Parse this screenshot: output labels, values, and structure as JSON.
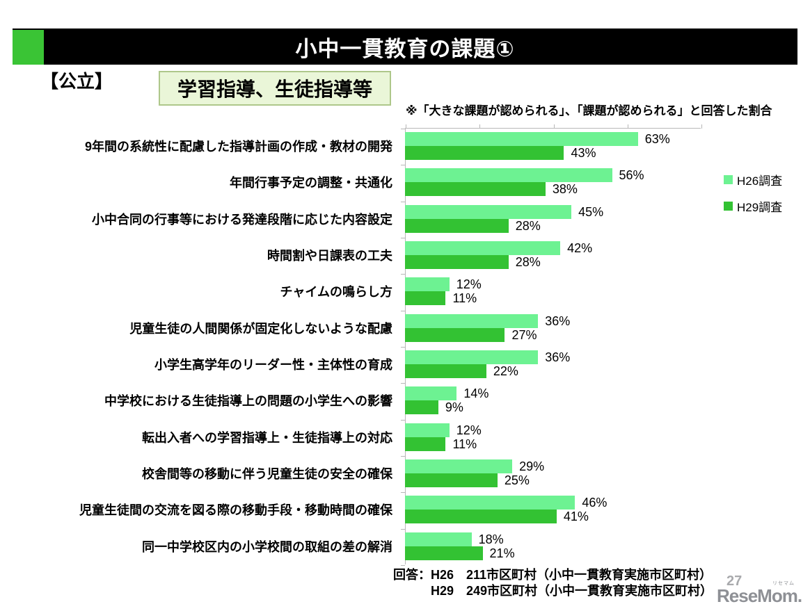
{
  "header": {
    "title": "小中一貫教育の課題①"
  },
  "section_label": "【公立】",
  "category_box_label": "学習指導、生徒指導等",
  "note": "※「大きな課題が認められる」、「課題が認められる」と回答した割合",
  "chart_data": {
    "type": "bar",
    "orientation": "horizontal",
    "title": "",
    "xlabel": "",
    "ylabel": "",
    "xlim": [
      0,
      80
    ],
    "x_ticks": [
      0,
      20,
      40,
      60,
      80
    ],
    "grid": false,
    "legend_position": "right",
    "value_suffix": "%",
    "categories": [
      "9年間の系統性に配慮した指導計画の作成・教材の開発",
      "年間行事予定の調整・共通化",
      "小中合同の行事等における発達段階に応じた内容設定",
      "時間割や日課表の工夫",
      "チャイムの鳴らし方",
      "児童生徒の人間関係が固定化しないような配慮",
      "小学生高学年のリーダー性・主体性の育成",
      "中学校における生徒指導上の問題の小学生への影響",
      "転出入者への学習指導上・生徒指導上の対応",
      "校舎間等の移動に伴う児童生徒の安全の確保",
      "児童生徒間の交流を図る際の移動手段・移動時間の確保",
      "同一中学校区内の小学校間の取組の差の解消"
    ],
    "series": [
      {
        "name": "H26調査",
        "color": "#6df292",
        "values": [
          63,
          56,
          45,
          42,
          12,
          36,
          36,
          14,
          12,
          29,
          46,
          18
        ]
      },
      {
        "name": "H29調査",
        "color": "#33c233",
        "values": [
          43,
          38,
          28,
          28,
          11,
          27,
          22,
          9,
          11,
          25,
          41,
          21
        ]
      }
    ]
  },
  "footer": {
    "line1": "回答：H26　211市区町村（小中一貫教育実施市区町村）",
    "line2": "H29　249市区町村（小中一貫教育実施市区町村）"
  },
  "page_number": "27",
  "logo": {
    "text": "ReseMom.",
    "ruby": "リセマム"
  },
  "colors": {
    "header_bar": "#000000",
    "header_accent": "#3ac435",
    "series_h26": "#6df292",
    "series_h29": "#33c233",
    "box_bg": "#eaf6d8",
    "box_border": "#aec78a",
    "axis": "#b7b7b7",
    "logo_grey": "#8e9095"
  }
}
